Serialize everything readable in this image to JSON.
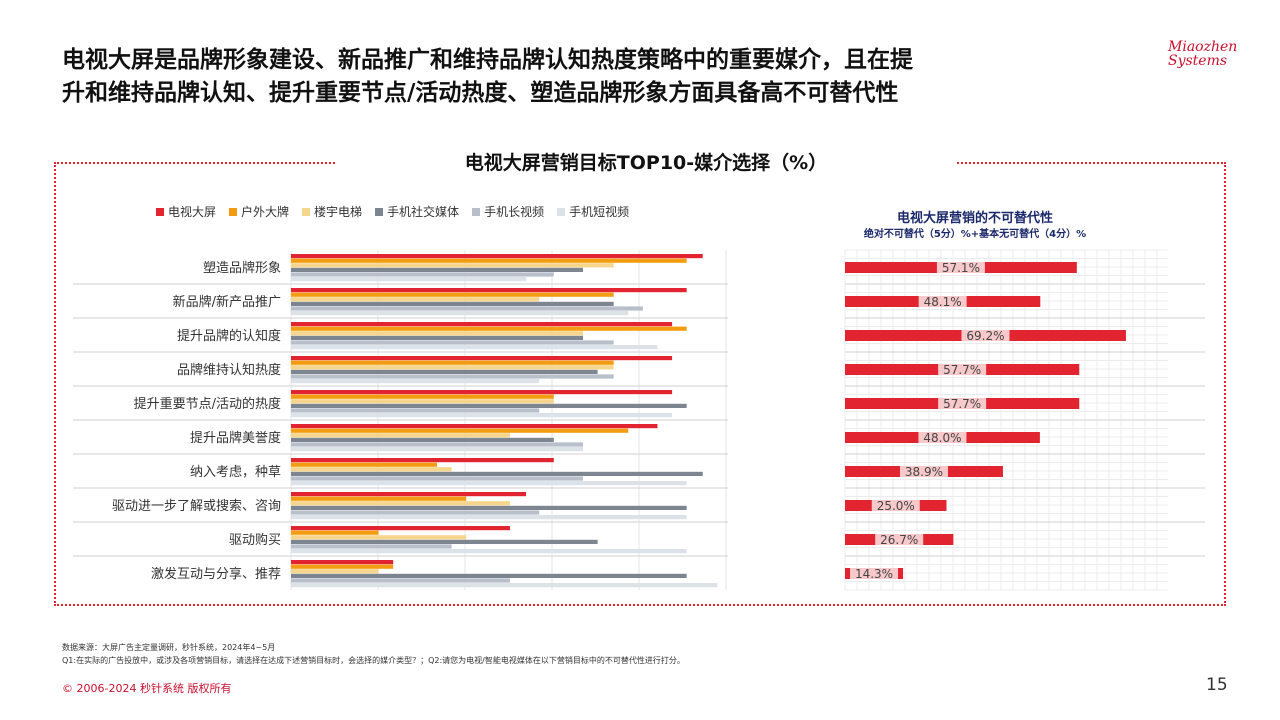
{
  "headline": {
    "line1": "电视大屏是品牌形象建设、新品推广和维持品牌认知热度策略中的重要媒介，且在提",
    "line2": "升和维持品牌认知、提升重要节点/活动热度、塑造品牌形象方面具备高不可替代性"
  },
  "logo": {
    "line1": "Miaozhen",
    "line2": "Systems"
  },
  "footer": {
    "source": "数据来源：大屏广告主定量调研，秒针系统，2024年4~5月",
    "questions": "Q1:在实际的广告投放中，或涉及各项营销目标，请选择在达成下述营销目标时，会选择的媒介类型？；Q2:请您为电视/智能电视媒体在以下营销目标中的不可替代性进行打分。",
    "copyright": "© 2006-2024 秒针系统 版权所有",
    "page": "15"
  },
  "colors": {
    "accent": "#e1242f",
    "outdoor": "#f39c12",
    "elevator": "#f6d58c",
    "social": "#7d8591",
    "long_video": "#b8bfca",
    "short_video": "#dde1e8",
    "right_title": "#1c2a6b"
  },
  "chart_data": [
    {
      "type": "bar",
      "orientation": "horizontal",
      "title": "电视大屏营销目标TOP10-媒介选择（%）",
      "legend_position": "top-left",
      "categories": [
        "塑造品牌形象",
        "新品牌/新产品推广",
        "提升品牌的认知度",
        "品牌维持认知热度",
        "提升重要节点/活动的热度",
        "提升品牌美誉度",
        "纳入考虑，种草",
        "驱动进一步了解或搜索、咨询",
        "驱动购买",
        "激发互动与分享、推荐"
      ],
      "series": [
        {
          "name": "电视大屏",
          "color": "#e1242f",
          "values": [
            28.2,
            27.1,
            26.1,
            26.1,
            26.1,
            25.1,
            18.0,
            16.1,
            15.0,
            7.0
          ]
        },
        {
          "name": "户外大牌",
          "color": "#f39c12",
          "values": [
            27.1,
            22.1,
            27.1,
            22.1,
            18.0,
            23.1,
            10.0,
            12.0,
            6.0,
            7.0
          ]
        },
        {
          "name": "楼宇电梯",
          "color": "#f6d58c",
          "values": [
            22.1,
            17.0,
            20.0,
            22.1,
            18.0,
            15.0,
            11.0,
            15.0,
            12.0,
            6.0
          ]
        },
        {
          "name": "手机社交媒体",
          "color": "#7d8591",
          "values": [
            20.0,
            22.1,
            20.0,
            21.0,
            27.1,
            18.0,
            28.2,
            27.1,
            21.0,
            27.1
          ]
        },
        {
          "name": "手机长视频",
          "color": "#b8bfca",
          "values": [
            18.0,
            24.1,
            22.1,
            22.1,
            17.0,
            20.0,
            20.0,
            17.0,
            11.0,
            15.0
          ]
        },
        {
          "name": "手机短视频",
          "color": "#dde1e8",
          "values": [
            16.1,
            23.1,
            25.1,
            17.0,
            26.1,
            20.0,
            27.1,
            27.1,
            27.1,
            29.2
          ]
        }
      ],
      "grid": true
    },
    {
      "type": "bar",
      "orientation": "horizontal",
      "title": "电视大屏营销的不可替代性",
      "subtitle": "绝对不可替代（5分）%+基本无可替代（4分）%",
      "categories": [
        "塑造品牌形象",
        "新品牌/新产品推广",
        "提升品牌的认知度",
        "品牌维持认知热度",
        "提升重要节点/活动的热度",
        "提升品牌美誉度",
        "纳入考虑，种草",
        "驱动进一步了解或搜索、咨询",
        "驱动购买",
        "激发互动与分享、推荐"
      ],
      "values": [
        57.1,
        48.1,
        69.2,
        57.7,
        57.7,
        48.0,
        38.9,
        25.0,
        26.7,
        14.3
      ],
      "labels": [
        "57.1%",
        "48.1%",
        "69.2%",
        "57.7%",
        "57.7%",
        "48.0%",
        "38.9%",
        "25.0%",
        "26.7%",
        "14.3%"
      ],
      "color": "#e1242f",
      "grid": true
    }
  ]
}
